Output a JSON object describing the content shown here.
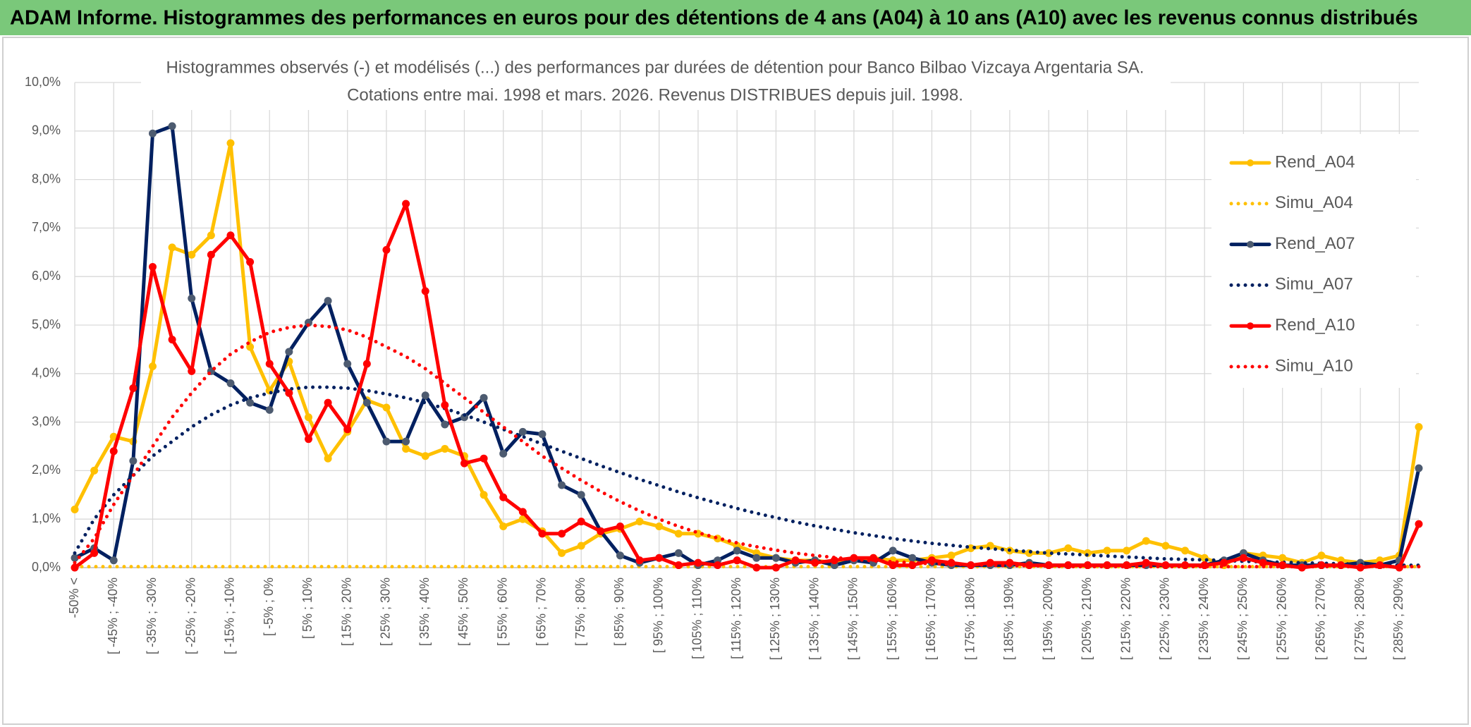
{
  "header": {
    "title": "ADAM Informe. Histogrammes des performances en euros pour des détentions de 4 ans (A04) à 10 ans (A10) avec les revenus connus distribués"
  },
  "chart_data": {
    "type": "line",
    "title": [
      "Histogrammes observés (-) et modélisés (...) des performances par durées de détention pour Banco Bilbao Vizcaya Argentaria SA.",
      "Cotations entre mai. 1998 et mars. 2026. Revenus DISTRIBUES depuis juil. 1998."
    ],
    "categories": [
      "-50% <",
      null,
      "[ -45% ; -40%",
      null,
      "[ -35% ; -30%",
      null,
      "[ -25% ; -20%",
      null,
      "[ -15% ; -10%",
      null,
      "[ -5% ; 0%",
      null,
      "[ 5% ; 10%",
      null,
      "[ 15% ; 20%",
      null,
      "[ 25% ; 30%",
      null,
      "[ 35% ; 40%",
      null,
      "[ 45% ; 50%",
      null,
      "[ 55% ; 60%",
      null,
      "[ 65% ; 70%",
      null,
      "[ 75% ; 80%",
      null,
      "[ 85% ; 90%",
      null,
      "[ 95% ; 100%",
      null,
      "[ 105% ; 110%",
      null,
      "[ 115% ; 120%",
      null,
      "[ 125% ; 130%",
      null,
      "[ 135% ; 140%",
      null,
      "[ 145% ; 150%",
      null,
      "[ 155% ; 160%",
      null,
      "[ 165% ; 170%",
      null,
      "[ 175% ; 180%",
      null,
      "[ 185% ; 190%",
      null,
      "[ 195% ; 200%",
      null,
      "[ 205% ; 210%",
      null,
      "[ 215% ; 220%",
      null,
      "[ 225% ; 230%",
      null,
      "[ 235% ; 240%",
      null,
      "[ 245% ; 250%",
      null,
      "[ 255% ; 260%",
      null,
      "[ 265% ; 270%",
      null,
      "[ 275% ; 280%",
      null,
      "[ 285% ; 290%",
      null
    ],
    "series": [
      {
        "name": "Rend_A04",
        "color": "#ffc000",
        "style": "solid",
        "marker_color": "#ffc000",
        "values": [
          1.2,
          2.0,
          2.7,
          2.6,
          4.15,
          6.6,
          6.45,
          6.85,
          8.75,
          4.55,
          3.65,
          4.25,
          3.1,
          2.25,
          2.8,
          3.45,
          3.3,
          2.45,
          2.3,
          2.45,
          2.3,
          1.5,
          0.85,
          1.0,
          0.75,
          0.3,
          0.45,
          0.7,
          0.8,
          0.95,
          0.85,
          0.7,
          0.7,
          0.6,
          0.45,
          0.3,
          0.2,
          0.15,
          0.15,
          0.1,
          0.15,
          0.2,
          0.15,
          0.15,
          0.2,
          0.25,
          0.4,
          0.45,
          0.35,
          0.3,
          0.3,
          0.4,
          0.3,
          0.35,
          0.35,
          0.55,
          0.45,
          0.35,
          0.2,
          0.05,
          0.3,
          0.25,
          0.2,
          0.1,
          0.25,
          0.15,
          0.1,
          0.15,
          0.25,
          2.9
        ]
      },
      {
        "name": "Simu_A04",
        "color": "#ffc000",
        "style": "dotted",
        "values": [
          0.02,
          0.02,
          0.02,
          0.02,
          0.02,
          0.02,
          0.02,
          0.02,
          0.02,
          0.02,
          0.02,
          0.02,
          0.02,
          0.02,
          0.02,
          0.02,
          0.02,
          0.02,
          0.02,
          0.02,
          0.02,
          0.02,
          0.02,
          0.02,
          0.02,
          0.02,
          0.02,
          0.02,
          0.02,
          0.02,
          0.02,
          0.02,
          0.02,
          0.02,
          0.02,
          0.02,
          0.02,
          0.02,
          0.02,
          0.02,
          0.02,
          0.02,
          0.02,
          0.02,
          0.02,
          0.02,
          0.02,
          0.02,
          0.02,
          0.02,
          0.02,
          0.02,
          0.02,
          0.02,
          0.02,
          0.02,
          0.02,
          0.02,
          0.02,
          0.02,
          0.02,
          0.02,
          0.02,
          0.02,
          0.02,
          0.02,
          0.02,
          0.02,
          0.02,
          0.02
        ]
      },
      {
        "name": "Rend_A07",
        "color": "#002060",
        "style": "solid",
        "marker_color": "#4d5b70",
        "values": [
          0.2,
          0.4,
          0.15,
          2.2,
          8.95,
          9.1,
          5.55,
          4.05,
          3.8,
          3.4,
          3.25,
          4.45,
          5.05,
          5.5,
          4.2,
          3.4,
          2.6,
          2.6,
          3.55,
          2.95,
          3.1,
          3.5,
          2.35,
          2.8,
          2.75,
          1.7,
          1.5,
          0.75,
          0.25,
          0.1,
          0.2,
          0.3,
          0.05,
          0.15,
          0.35,
          0.2,
          0.2,
          0.1,
          0.15,
          0.05,
          0.15,
          0.1,
          0.35,
          0.2,
          0.1,
          0.05,
          0.05,
          0.05,
          0.05,
          0.1,
          0.05,
          0.05,
          0.05,
          0.05,
          0.05,
          0.05,
          0.05,
          0.05,
          0.05,
          0.15,
          0.3,
          0.15,
          0.05,
          0.05,
          0.05,
          0.05,
          0.1,
          0.05,
          0.15,
          2.05
        ]
      },
      {
        "name": "Simu_A07",
        "color": "#002060",
        "style": "dotted",
        "values": [
          0.3,
          1.0,
          1.5,
          1.9,
          2.3,
          2.6,
          2.9,
          3.15,
          3.35,
          3.5,
          3.6,
          3.68,
          3.72,
          3.72,
          3.7,
          3.65,
          3.58,
          3.5,
          3.4,
          3.28,
          3.15,
          3.0,
          2.85,
          2.7,
          2.55,
          2.4,
          2.25,
          2.1,
          1.96,
          1.82,
          1.69,
          1.56,
          1.44,
          1.33,
          1.22,
          1.12,
          1.03,
          0.94,
          0.86,
          0.79,
          0.72,
          0.66,
          0.6,
          0.55,
          0.5,
          0.46,
          0.42,
          0.39,
          0.36,
          0.33,
          0.3,
          0.28,
          0.26,
          0.24,
          0.22,
          0.2,
          0.18,
          0.17,
          0.16,
          0.15,
          0.13,
          0.12,
          0.11,
          0.1,
          0.09,
          0.08,
          0.07,
          0.06,
          0.05,
          0.05
        ]
      },
      {
        "name": "Rend_A10",
        "color": "#ff0000",
        "style": "solid",
        "marker_color": "#ff0000",
        "values": [
          0.0,
          0.3,
          2.4,
          3.7,
          6.2,
          4.7,
          4.05,
          6.45,
          6.85,
          6.3,
          4.2,
          3.6,
          2.65,
          3.4,
          2.85,
          4.2,
          6.55,
          7.5,
          5.7,
          3.35,
          2.15,
          2.25,
          1.45,
          1.15,
          0.7,
          0.7,
          0.95,
          0.75,
          0.85,
          0.15,
          0.2,
          0.05,
          0.1,
          0.05,
          0.15,
          0.0,
          0.0,
          0.15,
          0.1,
          0.15,
          0.2,
          0.2,
          0.05,
          0.05,
          0.15,
          0.1,
          0.05,
          0.1,
          0.1,
          0.05,
          0.05,
          0.05,
          0.05,
          0.05,
          0.05,
          0.1,
          0.05,
          0.05,
          0.05,
          0.1,
          0.2,
          0.1,
          0.05,
          0.0,
          0.05,
          0.05,
          0.0,
          0.05,
          0.0,
          0.9
        ]
      },
      {
        "name": "Simu_A10",
        "color": "#ff0000",
        "style": "dotted",
        "values": [
          0.1,
          0.6,
          1.3,
          1.9,
          2.5,
          3.1,
          3.6,
          4.05,
          4.4,
          4.65,
          4.85,
          4.95,
          5.0,
          4.97,
          4.9,
          4.75,
          4.55,
          4.35,
          4.1,
          3.8,
          3.5,
          3.2,
          2.9,
          2.6,
          2.3,
          2.05,
          1.8,
          1.57,
          1.36,
          1.17,
          1.0,
          0.85,
          0.72,
          0.61,
          0.51,
          0.43,
          0.36,
          0.3,
          0.25,
          0.21,
          0.17,
          0.14,
          0.12,
          0.1,
          0.08,
          0.07,
          0.06,
          0.05,
          0.04,
          0.04,
          0.03,
          0.02,
          0.02,
          0.02,
          0.02,
          0.02,
          0.02,
          0.02,
          0.02,
          0.02,
          0.02,
          0.02,
          0.02,
          0.02,
          0.02,
          0.02,
          0.02,
          0.02,
          0.02,
          0.02
        ]
      }
    ],
    "ylim": [
      0,
      10
    ],
    "yticks": [
      {
        "value": 0,
        "label": "0,0%"
      },
      {
        "value": 1,
        "label": "1,0%"
      },
      {
        "value": 2,
        "label": "2,0%"
      },
      {
        "value": 3,
        "label": "3,0%"
      },
      {
        "value": 4,
        "label": "4,0%"
      },
      {
        "value": 5,
        "label": "5,0%"
      },
      {
        "value": 6,
        "label": "6,0%"
      },
      {
        "value": 7,
        "label": "7,0%"
      },
      {
        "value": 8,
        "label": "8,0%"
      },
      {
        "value": 9,
        "label": "9,0%"
      },
      {
        "value": 10,
        "label": "10,0%"
      }
    ],
    "grid": true,
    "legend": "right"
  }
}
